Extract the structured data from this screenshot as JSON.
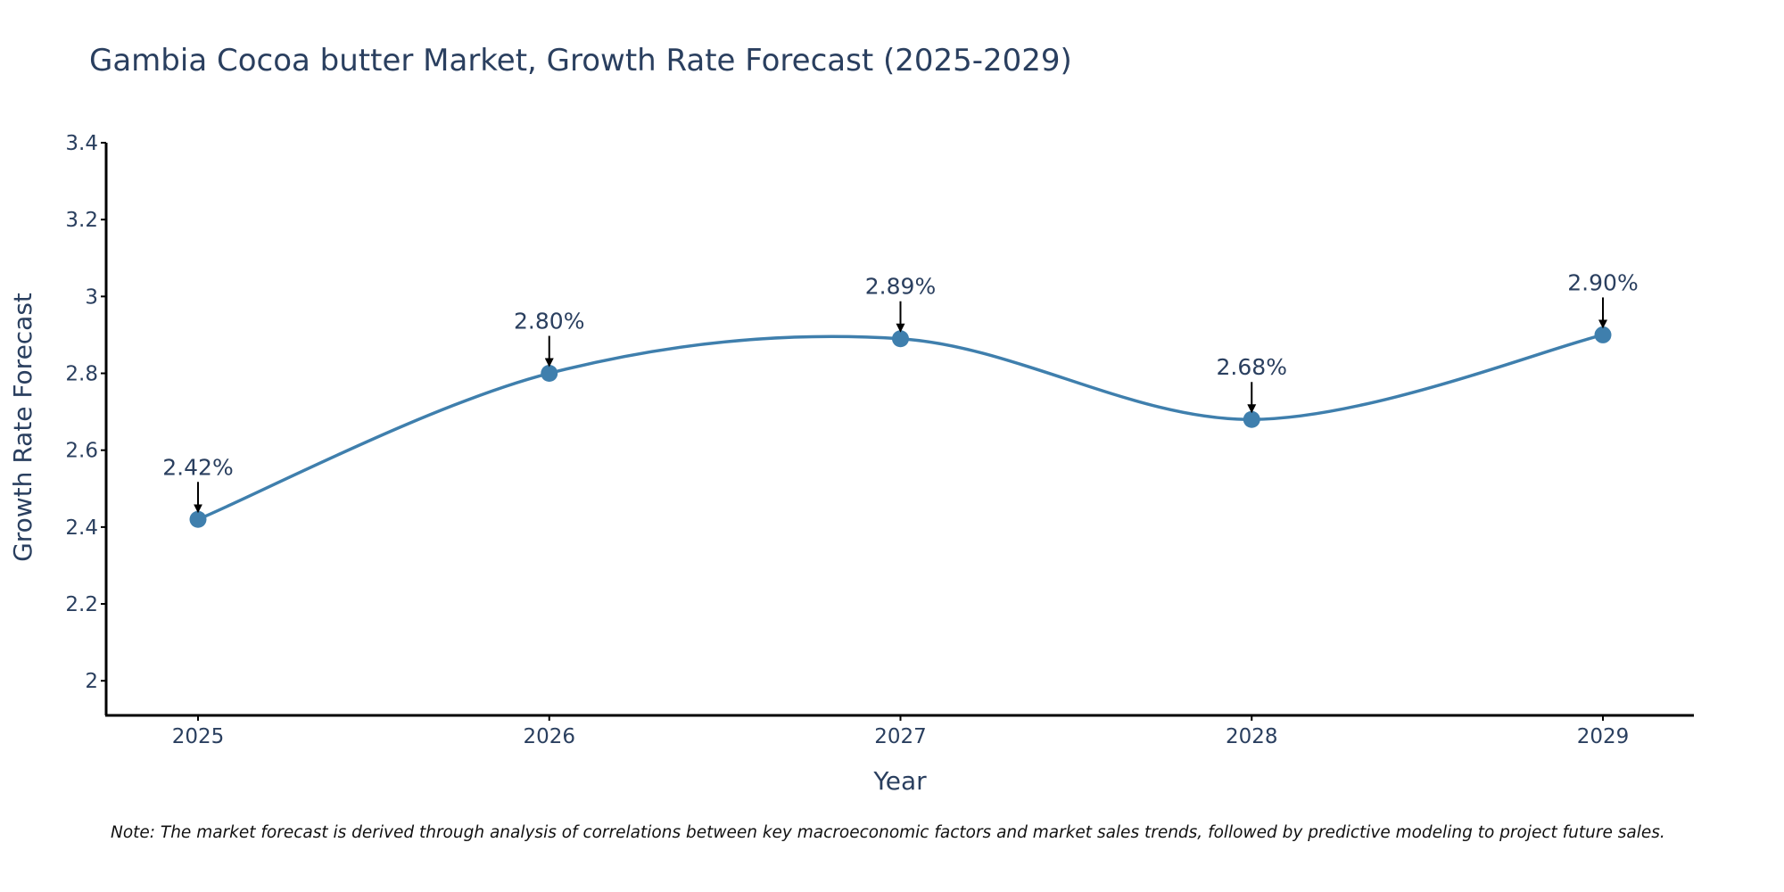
{
  "chart_data": {
    "type": "line",
    "title": "Gambia Cocoa butter Market, Growth Rate Forecast (2025-2029)",
    "xlabel": "Year",
    "ylabel": "Growth Rate Forecast",
    "categories": [
      "2025",
      "2026",
      "2027",
      "2028",
      "2029"
    ],
    "values": [
      2.42,
      2.8,
      2.89,
      2.68,
      2.9
    ],
    "data_labels": [
      "2.42%",
      "2.80%",
      "2.89%",
      "2.68%",
      "2.90%"
    ],
    "y_ticks": [
      2,
      2.2,
      2.4,
      2.6,
      2.8,
      3,
      3.2,
      3.4
    ],
    "y_tick_labels": [
      "2",
      "2.2",
      "2.4",
      "2.6",
      "2.8",
      "3",
      "3.2",
      "3.4"
    ],
    "ylim": [
      1.91,
      3.4
    ],
    "grid": false,
    "line_shape": "spline",
    "note": "Note: The market forecast is derived through analysis of correlations between key macroeconomic factors and market sales trends, followed by predictive modeling to project future sales."
  },
  "colors": {
    "line": "#3f7fad",
    "marker": "#3f7fad",
    "axis": "#000000",
    "text": "#2a3f5f",
    "arrow": "#000000"
  }
}
